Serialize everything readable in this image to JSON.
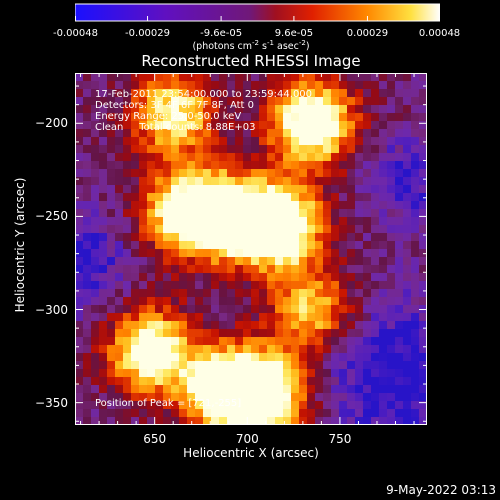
{
  "colorbar": {
    "tick_labels": [
      "-0.00048",
      "-0.00029",
      "-9.6e-05",
      "9.6e-05",
      "0.00029",
      "0.00048"
    ],
    "tick_values": [
      -0.00048,
      -0.00029,
      -9.6e-05,
      9.6e-05,
      0.00029,
      0.00048
    ],
    "range": [
      -0.00048,
      0.00048
    ],
    "units_prefix": "(photons cm",
    "units_exp1": "-2",
    "units_mid": " s",
    "units_exp2": "-1",
    "units_mid2": " asec",
    "units_exp3": "-2",
    "units_suffix": ")",
    "colors": [
      "#1010ff",
      "#6a10b8",
      "#801a80",
      "#d01800",
      "#ff8a00",
      "#fff070",
      "#ffffff"
    ]
  },
  "chart_data": {
    "type": "heatmap",
    "title": "Reconstructed RHESSI Image",
    "xlabel": "Heliocentric X (arcsec)",
    "ylabel": "Heliocentric Y (arcsec)",
    "xlim": [
      607,
      797
    ],
    "ylim": [
      -362,
      -173
    ],
    "x_ticks": [
      650,
      700,
      750
    ],
    "y_ticks": [
      -200,
      -250,
      -300,
      -350
    ],
    "peak": [
      721,
      -255
    ],
    "hot_regions": [
      {
        "x": 735,
        "y": -200,
        "level": 0.95
      },
      {
        "x": 718,
        "y": -255,
        "level": 1.0
      },
      {
        "x": 690,
        "y": -250,
        "level": 0.9
      },
      {
        "x": 665,
        "y": -248,
        "level": 0.75
      },
      {
        "x": 648,
        "y": -322,
        "level": 0.85
      },
      {
        "x": 688,
        "y": -343,
        "level": 0.95
      },
      {
        "x": 710,
        "y": -345,
        "level": 0.92
      },
      {
        "x": 660,
        "y": -195,
        "level": 0.7
      },
      {
        "x": 735,
        "y": -300,
        "level": 0.6
      }
    ]
  },
  "annotations": {
    "time_range": "17-Feb-2011 23:54:00.000 to 23:59:44.000",
    "detectors": "Detectors: 3F 4F 6F 7F 8F, Att 0",
    "energy_range": "Energy Range: 25.0-50.0 keV",
    "clean_counts": "Clean     Total counts: 8.88E+03",
    "peak_position": "Position of Peak = [721,-255]"
  },
  "timestamp": "9-May-2022 03:13"
}
